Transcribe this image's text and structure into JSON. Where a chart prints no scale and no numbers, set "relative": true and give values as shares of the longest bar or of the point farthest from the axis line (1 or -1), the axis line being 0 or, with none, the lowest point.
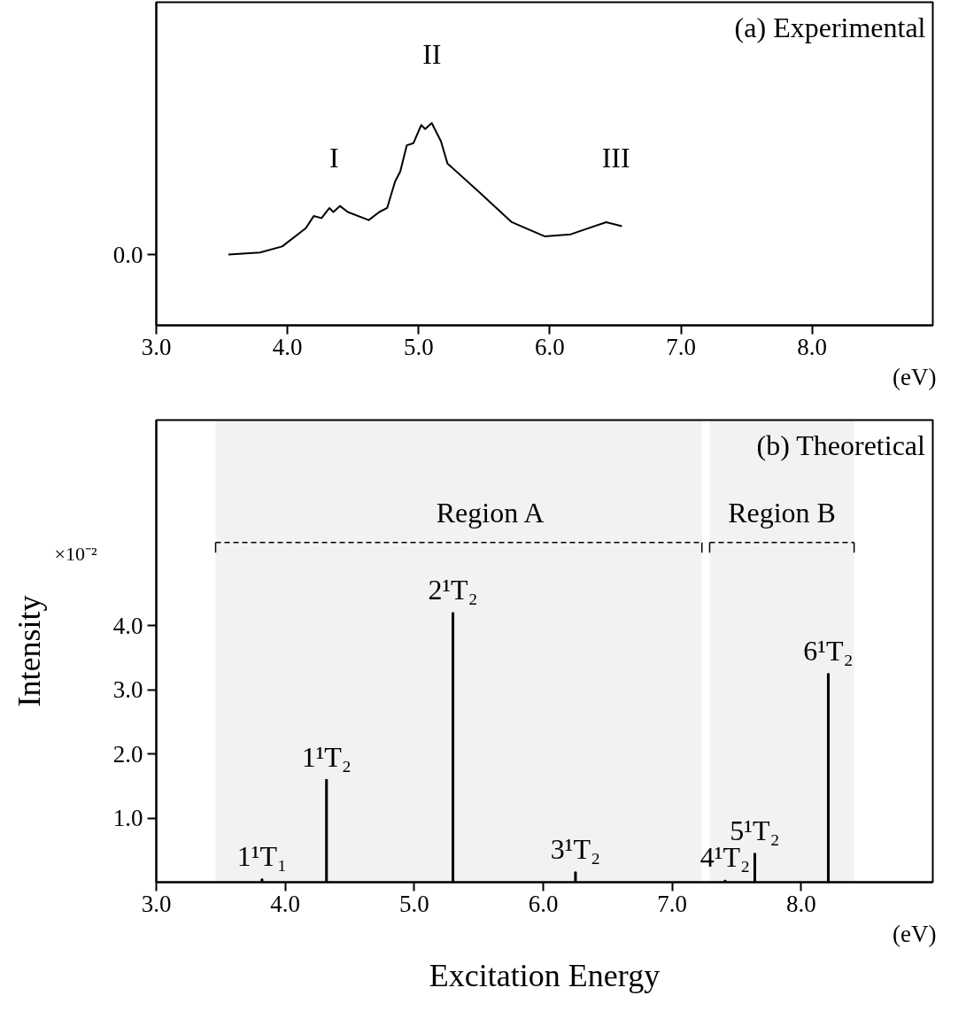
{
  "chart_data": [
    {
      "type": "line",
      "title": "(a) Experimental",
      "relative": true,
      "x": [
        3.55,
        3.79,
        3.96,
        4.14,
        4.2,
        4.26,
        4.32,
        4.35,
        4.4,
        4.46,
        4.62,
        4.7,
        4.76,
        4.82,
        4.86,
        4.91,
        4.96,
        5.02,
        5.05,
        5.1,
        5.17,
        5.22,
        5.46,
        5.71,
        5.96,
        6.16,
        6.43,
        6.55
      ],
      "values": [
        0.35,
        0.36,
        0.39,
        0.48,
        0.54,
        0.53,
        0.58,
        0.56,
        0.59,
        0.56,
        0.52,
        0.56,
        0.58,
        0.71,
        0.76,
        0.89,
        0.9,
        0.99,
        0.97,
        1.0,
        0.91,
        0.8,
        0.66,
        0.51,
        0.44,
        0.45,
        0.51,
        0.49
      ],
      "color": "#000000",
      "xlim": [
        3.0,
        8.92
      ],
      "xticks": [
        {
          "value": 3,
          "label": "3.0"
        },
        {
          "value": 4,
          "label": "4.0"
        },
        {
          "value": 5,
          "label": "5.0"
        },
        {
          "value": 6,
          "label": "6.0"
        },
        {
          "value": 7,
          "label": "7.0"
        },
        {
          "value": 8,
          "label": "8.0"
        }
      ],
      "annotations": [
        "I",
        "II",
        "III",
        "0.0",
        "(eV)"
      ]
    },
    {
      "type": "bar",
      "title": "(b) Theoretical",
      "xlabel": "Excitation Energy",
      "ylabel": "Intensity",
      "x": [
        3.82,
        4.32,
        5.3,
        6.25,
        7.41,
        7.64,
        8.21
      ],
      "values": [
        0.05,
        1.6,
        4.2,
        0.16,
        0.03,
        0.45,
        3.25
      ],
      "color": "#000000",
      "xlim": [
        3.0,
        9.02
      ],
      "xticks": [
        {
          "value": 3,
          "label": "3.0"
        },
        {
          "value": 4,
          "label": "4.0"
        },
        {
          "value": 5,
          "label": "5.0"
        },
        {
          "value": 6,
          "label": "6.0"
        },
        {
          "value": 7,
          "label": "7.0"
        },
        {
          "value": 8,
          "label": "8.0"
        }
      ],
      "ylim": [
        0,
        7.2
      ],
      "yticks": [
        {
          "value": 1,
          "label": "1.0"
        },
        {
          "value": 2,
          "label": "2.0"
        },
        {
          "value": 3,
          "label": "3.0"
        },
        {
          "value": 4,
          "label": "4.0"
        }
      ],
      "bands": [
        {
          "axis": "x",
          "from": 3.46,
          "to": 7.23,
          "label": "Region A",
          "color": "#000000"
        },
        {
          "axis": "x",
          "from": 7.29,
          "to": 8.41,
          "label": "Region B",
          "color": "#000000"
        }
      ],
      "annotations": [
        {
          "text": "1¹T₁",
          "x": 3.82,
          "y": 0.05
        },
        {
          "text": "1¹T₂",
          "x": 4.32,
          "y": 1.6
        },
        {
          "text": "2¹T₂",
          "x": 5.3,
          "y": 4.2
        },
        {
          "text": "3¹T₂",
          "x": 6.25,
          "y": 0.16
        },
        {
          "text": "4¹T₂",
          "x": 7.41,
          "y": 0.03
        },
        {
          "text": "5¹T₂",
          "x": 7.64,
          "y": 0.45
        },
        {
          "text": "6¹T₂",
          "x": 8.21,
          "y": 3.25
        },
        "(eV)",
        "×10⁻²"
      ]
    }
  ]
}
